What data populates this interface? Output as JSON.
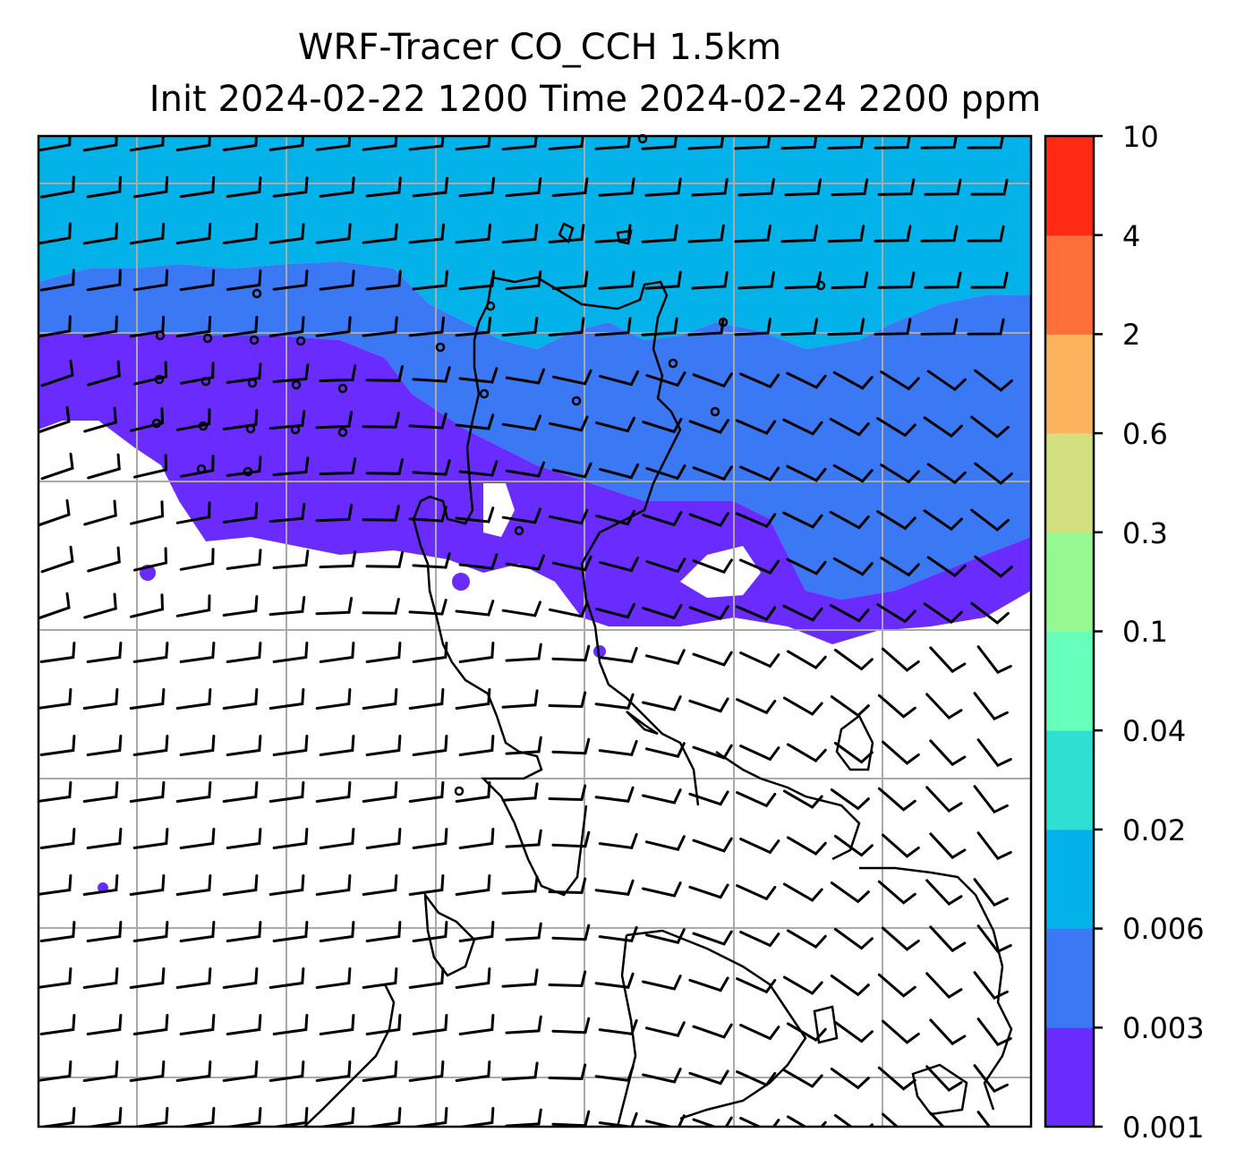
{
  "title": {
    "line1": "WRF-Tracer CO_CCH 1.5km",
    "line2": "Init 2024-02-22 1200 Time 2024-02-24 2200 ppm"
  },
  "colorbar": {
    "levels": [
      "0.001",
      "0.003",
      "0.006",
      "0.02",
      "0.04",
      "0.1",
      "0.3",
      "0.6",
      "2",
      "4",
      "10"
    ],
    "colors": [
      "#6a2bff",
      "#3a78f4",
      "#04b2ea",
      "#2ee0d2",
      "#66ffbb",
      "#96f890",
      "#d2e080",
      "#fdb35e",
      "#ff6f3a",
      "#ff2b14"
    ]
  },
  "map": {
    "background": "#ffffff",
    "gridline_color": "#aaaaaa",
    "coastline_color": "#000000"
  }
}
